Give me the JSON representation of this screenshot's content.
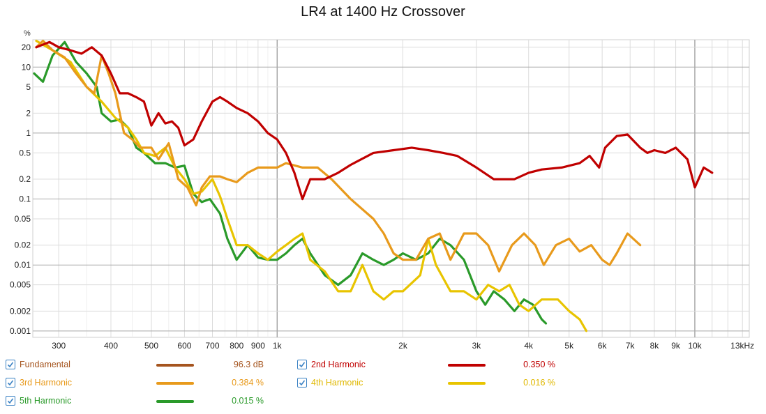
{
  "chart_data": {
    "type": "line",
    "title": "LR4 at 1400 Hz Crossover",
    "ylabel": "%",
    "xlabel": "",
    "xscale": "log",
    "yscale": "log",
    "xlim": [
      260,
      13500
    ],
    "ylim": [
      0.0008,
      26
    ],
    "grid": true,
    "x_ticks": [
      {
        "v": 300,
        "label": "300"
      },
      {
        "v": 400,
        "label": "400"
      },
      {
        "v": 500,
        "label": "500"
      },
      {
        "v": 600,
        "label": "600"
      },
      {
        "v": 700,
        "label": "700"
      },
      {
        "v": 800,
        "label": "800"
      },
      {
        "v": 900,
        "label": "900"
      },
      {
        "v": 1000,
        "label": "1k"
      },
      {
        "v": 2000,
        "label": "2k"
      },
      {
        "v": 3000,
        "label": "3k"
      },
      {
        "v": 4000,
        "label": "4k"
      },
      {
        "v": 5000,
        "label": "5k"
      },
      {
        "v": 6000,
        "label": "6k"
      },
      {
        "v": 7000,
        "label": "7k"
      },
      {
        "v": 8000,
        "label": "8k"
      },
      {
        "v": 9000,
        "label": "9k"
      },
      {
        "v": 10000,
        "label": "10k"
      },
      {
        "v": 13000,
        "label": "13kHz"
      }
    ],
    "y_ticks": [
      {
        "v": 20,
        "label": "20"
      },
      {
        "v": 10,
        "label": "10"
      },
      {
        "v": 5,
        "label": "5"
      },
      {
        "v": 2,
        "label": "2"
      },
      {
        "v": 1,
        "label": "1"
      },
      {
        "v": 0.5,
        "label": "0.5"
      },
      {
        "v": 0.2,
        "label": "0.2"
      },
      {
        "v": 0.1,
        "label": "0.1"
      },
      {
        "v": 0.05,
        "label": "0.05"
      },
      {
        "v": 0.02,
        "label": "0.02"
      },
      {
        "v": 0.01,
        "label": "0.01"
      },
      {
        "v": 0.005,
        "label": "0.005"
      },
      {
        "v": 0.002,
        "label": "0.002"
      },
      {
        "v": 0.001,
        "label": "0.001"
      }
    ],
    "series": [
      {
        "name": "2nd Harmonic",
        "color": "#c00000",
        "points": [
          [
            265,
            20
          ],
          [
            285,
            24
          ],
          [
            300,
            20
          ],
          [
            320,
            18
          ],
          [
            340,
            16
          ],
          [
            360,
            20
          ],
          [
            380,
            15
          ],
          [
            400,
            8
          ],
          [
            420,
            4
          ],
          [
            440,
            4
          ],
          [
            460,
            3.5
          ],
          [
            480,
            3
          ],
          [
            500,
            1.3
          ],
          [
            520,
            2
          ],
          [
            540,
            1.4
          ],
          [
            560,
            1.5
          ],
          [
            580,
            1.2
          ],
          [
            600,
            0.65
          ],
          [
            630,
            0.8
          ],
          [
            660,
            1.5
          ],
          [
            700,
            3
          ],
          [
            730,
            3.5
          ],
          [
            760,
            3
          ],
          [
            800,
            2.4
          ],
          [
            850,
            2
          ],
          [
            900,
            1.5
          ],
          [
            950,
            1
          ],
          [
            1000,
            0.8
          ],
          [
            1050,
            0.5
          ],
          [
            1100,
            0.25
          ],
          [
            1150,
            0.1
          ],
          [
            1200,
            0.2
          ],
          [
            1300,
            0.2
          ],
          [
            1400,
            0.25
          ],
          [
            1500,
            0.33
          ],
          [
            1700,
            0.5
          ],
          [
            1900,
            0.55
          ],
          [
            2100,
            0.6
          ],
          [
            2300,
            0.55
          ],
          [
            2500,
            0.5
          ],
          [
            2700,
            0.45
          ],
          [
            3000,
            0.3
          ],
          [
            3300,
            0.2
          ],
          [
            3700,
            0.2
          ],
          [
            4000,
            0.25
          ],
          [
            4300,
            0.28
          ],
          [
            4800,
            0.3
          ],
          [
            5300,
            0.35
          ],
          [
            5600,
            0.45
          ],
          [
            5900,
            0.3
          ],
          [
            6100,
            0.6
          ],
          [
            6500,
            0.9
          ],
          [
            6900,
            0.95
          ],
          [
            7400,
            0.6
          ],
          [
            7700,
            0.5
          ],
          [
            8000,
            0.55
          ],
          [
            8500,
            0.5
          ],
          [
            9000,
            0.6
          ],
          [
            9600,
            0.4
          ],
          [
            10000,
            0.15
          ],
          [
            10500,
            0.3
          ],
          [
            11000,
            0.25
          ]
        ]
      },
      {
        "name": "3rd Harmonic",
        "color": "#e89a1c",
        "points": [
          [
            265,
            20
          ],
          [
            275,
            25
          ],
          [
            290,
            18
          ],
          [
            310,
            14
          ],
          [
            330,
            8
          ],
          [
            350,
            5
          ],
          [
            365,
            4
          ],
          [
            380,
            15
          ],
          [
            395,
            8
          ],
          [
            410,
            4
          ],
          [
            430,
            1
          ],
          [
            450,
            0.8
          ],
          [
            470,
            0.6
          ],
          [
            500,
            0.6
          ],
          [
            520,
            0.4
          ],
          [
            550,
            0.7
          ],
          [
            580,
            0.2
          ],
          [
            610,
            0.15
          ],
          [
            640,
            0.08
          ],
          [
            660,
            0.15
          ],
          [
            690,
            0.22
          ],
          [
            730,
            0.22
          ],
          [
            760,
            0.2
          ],
          [
            800,
            0.18
          ],
          [
            850,
            0.25
          ],
          [
            900,
            0.3
          ],
          [
            1000,
            0.3
          ],
          [
            1050,
            0.35
          ],
          [
            1150,
            0.3
          ],
          [
            1250,
            0.3
          ],
          [
            1350,
            0.2
          ],
          [
            1500,
            0.1
          ],
          [
            1700,
            0.05
          ],
          [
            1800,
            0.03
          ],
          [
            1900,
            0.015
          ],
          [
            2000,
            0.012
          ],
          [
            2150,
            0.012
          ],
          [
            2300,
            0.025
          ],
          [
            2450,
            0.03
          ],
          [
            2600,
            0.012
          ],
          [
            2800,
            0.03
          ],
          [
            3000,
            0.03
          ],
          [
            3200,
            0.02
          ],
          [
            3400,
            0.008
          ],
          [
            3650,
            0.02
          ],
          [
            3900,
            0.03
          ],
          [
            4150,
            0.02
          ],
          [
            4350,
            0.01
          ],
          [
            4650,
            0.02
          ],
          [
            5000,
            0.025
          ],
          [
            5300,
            0.016
          ],
          [
            5650,
            0.02
          ],
          [
            6000,
            0.012
          ],
          [
            6250,
            0.01
          ],
          [
            6500,
            0.015
          ],
          [
            6900,
            0.03
          ],
          [
            7400,
            0.02
          ]
        ]
      },
      {
        "name": "4th Harmonic",
        "color": "#e8c400",
        "points": [
          [
            265,
            25
          ],
          [
            290,
            18
          ],
          [
            320,
            12
          ],
          [
            350,
            5
          ],
          [
            380,
            3
          ],
          [
            410,
            1.7
          ],
          [
            440,
            1.2
          ],
          [
            460,
            0.8
          ],
          [
            480,
            0.5
          ],
          [
            510,
            0.45
          ],
          [
            540,
            0.6
          ],
          [
            570,
            0.3
          ],
          [
            600,
            0.2
          ],
          [
            630,
            0.12
          ],
          [
            660,
            0.13
          ],
          [
            700,
            0.2
          ],
          [
            730,
            0.11
          ],
          [
            760,
            0.05
          ],
          [
            800,
            0.02
          ],
          [
            850,
            0.02
          ],
          [
            900,
            0.015
          ],
          [
            950,
            0.012
          ],
          [
            1000,
            0.016
          ],
          [
            1050,
            0.02
          ],
          [
            1100,
            0.025
          ],
          [
            1150,
            0.03
          ],
          [
            1200,
            0.012
          ],
          [
            1300,
            0.008
          ],
          [
            1400,
            0.004
          ],
          [
            1500,
            0.004
          ],
          [
            1600,
            0.01
          ],
          [
            1700,
            0.004
          ],
          [
            1800,
            0.003
          ],
          [
            1900,
            0.004
          ],
          [
            2000,
            0.004
          ],
          [
            2200,
            0.007
          ],
          [
            2300,
            0.025
          ],
          [
            2400,
            0.01
          ],
          [
            2600,
            0.004
          ],
          [
            2800,
            0.004
          ],
          [
            3000,
            0.003
          ],
          [
            3200,
            0.005
          ],
          [
            3400,
            0.004
          ],
          [
            3600,
            0.005
          ],
          [
            3800,
            0.0025
          ],
          [
            4000,
            0.002
          ],
          [
            4300,
            0.003
          ],
          [
            4700,
            0.003
          ],
          [
            5000,
            0.002
          ],
          [
            5300,
            0.0015
          ],
          [
            5500,
            0.001
          ]
        ]
      },
      {
        "name": "5th Harmonic",
        "color": "#2a9a2a",
        "points": [
          [
            262,
            8
          ],
          [
            275,
            6
          ],
          [
            290,
            15
          ],
          [
            310,
            24
          ],
          [
            330,
            12
          ],
          [
            350,
            8
          ],
          [
            370,
            5
          ],
          [
            380,
            2
          ],
          [
            400,
            1.5
          ],
          [
            420,
            1.6
          ],
          [
            440,
            1.2
          ],
          [
            460,
            0.6
          ],
          [
            480,
            0.5
          ],
          [
            510,
            0.35
          ],
          [
            540,
            0.35
          ],
          [
            570,
            0.3
          ],
          [
            600,
            0.32
          ],
          [
            630,
            0.12
          ],
          [
            660,
            0.09
          ],
          [
            690,
            0.1
          ],
          [
            730,
            0.06
          ],
          [
            760,
            0.025
          ],
          [
            800,
            0.012
          ],
          [
            850,
            0.02
          ],
          [
            900,
            0.013
          ],
          [
            950,
            0.012
          ],
          [
            1000,
            0.012
          ],
          [
            1050,
            0.015
          ],
          [
            1100,
            0.02
          ],
          [
            1150,
            0.025
          ],
          [
            1200,
            0.015
          ],
          [
            1300,
            0.007
          ],
          [
            1400,
            0.005
          ],
          [
            1500,
            0.007
          ],
          [
            1600,
            0.015
          ],
          [
            1700,
            0.012
          ],
          [
            1800,
            0.01
          ],
          [
            1900,
            0.012
          ],
          [
            2000,
            0.015
          ],
          [
            2150,
            0.012
          ],
          [
            2300,
            0.015
          ],
          [
            2450,
            0.025
          ],
          [
            2600,
            0.02
          ],
          [
            2800,
            0.012
          ],
          [
            3000,
            0.004
          ],
          [
            3150,
            0.0025
          ],
          [
            3300,
            0.004
          ],
          [
            3500,
            0.003
          ],
          [
            3700,
            0.002
          ],
          [
            3900,
            0.003
          ],
          [
            4100,
            0.0025
          ],
          [
            4300,
            0.0015
          ],
          [
            4400,
            0.0013
          ]
        ]
      }
    ]
  },
  "legend": [
    {
      "label": "Fundamental",
      "value": "96.3 dB",
      "color": "#a5541e",
      "text_color": "#a5541e"
    },
    {
      "label": "2nd Harmonic",
      "value": "0.350 %",
      "color": "#c00000",
      "text_color": "#c00000"
    },
    {
      "label": "3rd Harmonic",
      "value": "0.384 %",
      "color": "#e89a1c",
      "text_color": "#e89a1c"
    },
    {
      "label": "4th Harmonic",
      "value": "0.016 %",
      "color": "#e8c400",
      "text_color": "#e0b800"
    },
    {
      "label": "5th Harmonic",
      "value": "0.015 %",
      "color": "#2a9a2a",
      "text_color": "#2a9a2a"
    }
  ]
}
